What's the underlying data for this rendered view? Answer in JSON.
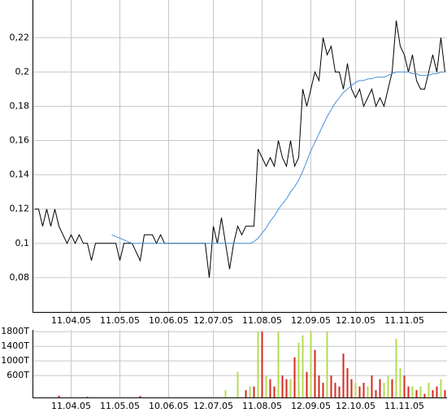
{
  "chart_data": [
    {
      "type": "line",
      "categories": [
        null,
        null,
        null,
        null,
        null,
        null,
        null,
        null,
        null,
        "11.04.05",
        null,
        null,
        null,
        null,
        null,
        null,
        null,
        null,
        null,
        null,
        null,
        "11.05.05",
        null,
        null,
        null,
        null,
        null,
        null,
        null,
        null,
        null,
        null,
        null,
        "10.06.05",
        null,
        null,
        null,
        null,
        null,
        null,
        null,
        null,
        null,
        null,
        "12.07.05",
        null,
        null,
        null,
        null,
        null,
        null,
        null,
        null,
        null,
        null,
        null,
        "11.08.05",
        null,
        null,
        null,
        null,
        null,
        null,
        null,
        null,
        null,
        null,
        null,
        "12.09.05",
        null,
        null,
        null,
        null,
        null,
        null,
        null,
        null,
        null,
        null,
        "12.10.05",
        null,
        null,
        null,
        null,
        null,
        null,
        null,
        null,
        null,
        null,
        null,
        "11.11.05",
        null,
        null,
        null,
        null,
        null,
        null,
        null,
        null,
        null,
        null
      ],
      "series": [
        {
          "color": "#000000",
          "values": [
            0.12,
            0.12,
            0.11,
            0.12,
            0.11,
            0.12,
            0.11,
            0.105,
            0.1,
            0.105,
            0.1,
            0.105,
            0.1,
            0.1,
            0.09,
            0.1,
            0.1,
            0.1,
            0.1,
            0.1,
            0.1,
            0.09,
            0.1,
            0.1,
            0.1,
            0.095,
            0.09,
            0.105,
            0.105,
            0.105,
            0.1,
            0.105,
            0.1,
            0.1,
            0.1,
            0.1,
            0.1,
            0.1,
            0.1,
            0.1,
            0.1,
            0.1,
            0.1,
            0.08,
            0.11,
            0.1,
            0.115,
            0.1,
            0.085,
            0.1,
            0.11,
            0.105,
            0.11,
            0.11,
            0.11,
            0.155,
            0.15,
            0.145,
            0.15,
            0.145,
            0.16,
            0.15,
            0.145,
            0.16,
            0.145,
            0.15,
            0.19,
            0.18,
            0.19,
            0.2,
            0.195,
            0.22,
            0.21,
            0.215,
            0.2,
            0.2,
            0.19,
            0.205,
            0.19,
            0.185,
            0.19,
            0.18,
            0.185,
            0.19,
            0.18,
            0.185,
            0.18,
            0.19,
            0.2,
            0.23,
            0.215,
            0.21,
            0.2,
            0.21,
            0.195,
            0.19,
            0.19,
            0.2,
            0.21,
            0.2,
            0.22,
            0.2
          ]
        },
        {
          "color": "#4a90d9",
          "values": [
            null,
            null,
            null,
            null,
            null,
            null,
            null,
            null,
            null,
            null,
            null,
            null,
            null,
            null,
            null,
            null,
            null,
            null,
            null,
            0.105,
            0.104,
            0.103,
            0.102,
            0.101,
            0.1,
            0.1,
            0.1,
            0.1,
            0.1,
            0.1,
            0.1,
            0.1,
            0.1,
            0.1,
            0.1,
            0.1,
            0.1,
            0.1,
            0.1,
            0.1,
            0.1,
            0.1,
            0.1,
            0.1,
            0.1,
            0.1,
            0.1,
            0.1,
            0.1,
            0.1,
            0.1,
            0.1,
            0.1,
            0.1,
            0.101,
            0.103,
            0.106,
            0.109,
            0.113,
            0.116,
            0.12,
            0.123,
            0.126,
            0.13,
            0.133,
            0.137,
            0.142,
            0.148,
            0.154,
            0.159,
            0.164,
            0.169,
            0.174,
            0.178,
            0.182,
            0.185,
            0.188,
            0.19,
            0.192,
            0.194,
            0.195,
            0.195,
            0.196,
            0.196,
            0.197,
            0.197,
            0.197,
            0.198,
            0.199,
            0.2,
            0.2,
            0.2,
            0.2,
            0.199,
            0.199,
            0.198,
            0.198,
            0.198,
            0.199,
            0.199,
            0.2,
            0.2
          ]
        }
      ],
      "ylim": [
        0.06,
        0.242
      ],
      "yticks": [
        {
          "value": 0.08,
          "label": "0,08"
        },
        {
          "value": 0.1,
          "label": "0,1"
        },
        {
          "value": 0.12,
          "label": "0,12"
        },
        {
          "value": 0.14,
          "label": "0,14"
        },
        {
          "value": 0.16,
          "label": "0,16"
        },
        {
          "value": 0.18,
          "label": "0,18"
        },
        {
          "value": 0.2,
          "label": "0,2"
        },
        {
          "value": 0.22,
          "label": "0,22"
        }
      ],
      "grid": true
    },
    {
      "type": "bar",
      "categories": [
        null,
        null,
        null,
        null,
        null,
        null,
        null,
        null,
        null,
        "11.04.05",
        null,
        null,
        null,
        null,
        null,
        null,
        null,
        null,
        null,
        null,
        null,
        "11.05.05",
        null,
        null,
        null,
        null,
        null,
        null,
        null,
        null,
        null,
        null,
        null,
        "10.06.05",
        null,
        null,
        null,
        null,
        null,
        null,
        null,
        null,
        null,
        null,
        "12.07.05",
        null,
        null,
        null,
        null,
        null,
        null,
        null,
        null,
        null,
        null,
        null,
        "11.08.05",
        null,
        null,
        null,
        null,
        null,
        null,
        null,
        null,
        null,
        null,
        null,
        "12.09.05",
        null,
        null,
        null,
        null,
        null,
        null,
        null,
        null,
        null,
        null,
        "12.10.05",
        null,
        null,
        null,
        null,
        null,
        null,
        null,
        null,
        null,
        null,
        null,
        "11.11.05",
        null,
        null,
        null,
        null,
        null,
        null,
        null,
        null,
        null,
        null
      ],
      "series": [
        {
          "color": "#d42a1e",
          "values": [
            null,
            null,
            null,
            null,
            null,
            null,
            50,
            null,
            null,
            null,
            null,
            null,
            null,
            20,
            null,
            null,
            null,
            null,
            null,
            null,
            null,
            null,
            null,
            null,
            null,
            null,
            40,
            null,
            null,
            null,
            null,
            null,
            null,
            null,
            null,
            null,
            null,
            null,
            null,
            null,
            null,
            null,
            null,
            null,
            null,
            null,
            null,
            null,
            null,
            null,
            null,
            null,
            200,
            null,
            300,
            null,
            1800,
            null,
            500,
            300,
            null,
            600,
            500,
            null,
            1100,
            null,
            null,
            700,
            null,
            1300,
            600,
            400,
            null,
            600,
            400,
            300,
            1200,
            800,
            500,
            null,
            300,
            400,
            null,
            600,
            200,
            500,
            null,
            null,
            500,
            null,
            null,
            600,
            300,
            null,
            200,
            null,
            100,
            null,
            200,
            300,
            null,
            200
          ]
        },
        {
          "color": "#b4dc50",
          "values": [
            null,
            null,
            null,
            null,
            null,
            null,
            null,
            null,
            null,
            null,
            null,
            null,
            null,
            null,
            null,
            null,
            null,
            null,
            null,
            null,
            null,
            null,
            null,
            null,
            null,
            null,
            null,
            null,
            null,
            null,
            null,
            null,
            null,
            null,
            null,
            null,
            null,
            null,
            null,
            null,
            null,
            null,
            null,
            null,
            null,
            null,
            null,
            200,
            null,
            null,
            700,
            null,
            null,
            300,
            null,
            1800,
            null,
            600,
            null,
            null,
            1800,
            null,
            null,
            500,
            null,
            1500,
            1700,
            null,
            1800,
            null,
            null,
            null,
            1800,
            null,
            null,
            null,
            null,
            null,
            null,
            400,
            null,
            null,
            300,
            null,
            null,
            null,
            400,
            600,
            null,
            1600,
            800,
            null,
            null,
            300,
            null,
            300,
            null,
            400,
            null,
            null,
            500,
            null
          ]
        }
      ],
      "ylim": [
        0,
        1850
      ],
      "yticks": [
        {
          "value": 600,
          "label": "600T"
        },
        {
          "value": 1000,
          "label": "1000T"
        },
        {
          "value": 1400,
          "label": "1400T"
        },
        {
          "value": 1800,
          "label": "1800T"
        }
      ],
      "grid": true
    }
  ]
}
